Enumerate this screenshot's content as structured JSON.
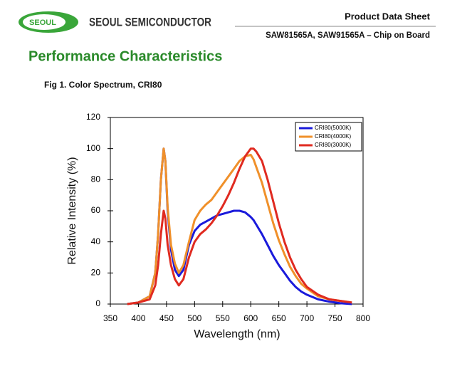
{
  "header": {
    "logo": "SEOUL",
    "company": "SEOUL SEMICONDUCTOR",
    "doc_type": "Product Data Sheet",
    "products": "SAW81565A, SAW91565A – Chip on Board"
  },
  "section_title": "Performance Characteristics",
  "figure_caption": "Fig 1. Color Spectrum, CRI80",
  "chart_data": {
    "type": "line",
    "x_label": "Wavelength (nm)",
    "y_label": "Relative Intensity (%)",
    "x": [
      380,
      400,
      420,
      430,
      435,
      440,
      445,
      448,
      452,
      458,
      465,
      472,
      480,
      490,
      500,
      510,
      520,
      530,
      540,
      550,
      560,
      570,
      580,
      590,
      600,
      605,
      610,
      620,
      630,
      640,
      650,
      660,
      670,
      680,
      690,
      700,
      720,
      740,
      760,
      780
    ],
    "series": [
      {
        "name": "CRI80(5000K)",
        "color": "#1a1adb",
        "values": [
          0,
          1,
          5,
          20,
          45,
          80,
          100,
          92,
          60,
          35,
          22,
          18,
          22,
          38,
          47,
          51,
          53,
          55,
          57,
          58,
          59,
          60,
          60,
          59,
          56,
          54,
          51,
          45,
          38,
          31,
          25,
          20,
          15,
          11,
          8,
          6,
          3,
          1.5,
          0.5,
          0
        ]
      },
      {
        "name": "CRI80(4000K)",
        "color": "#f0902a",
        "values": [
          0,
          1,
          5,
          20,
          45,
          80,
          100,
          92,
          62,
          38,
          26,
          20,
          25,
          40,
          54,
          60,
          64,
          67,
          72,
          77,
          82,
          87,
          92,
          95,
          96,
          93,
          88,
          78,
          65,
          52,
          41,
          32,
          24,
          18,
          13,
          10,
          5,
          3,
          2,
          1
        ]
      },
      {
        "name": "CRI80(3000K)",
        "color": "#e02a20",
        "values": [
          0,
          1,
          3,
          12,
          25,
          45,
          60,
          55,
          38,
          25,
          16,
          12,
          16,
          30,
          40,
          45,
          48,
          52,
          57,
          63,
          70,
          78,
          87,
          95,
          100,
          100,
          98,
          92,
          80,
          66,
          52,
          40,
          30,
          22,
          16,
          11,
          6,
          3,
          2,
          1
        ]
      }
    ],
    "xlim": [
      350,
      800
    ],
    "xticks": [
      350,
      400,
      450,
      500,
      550,
      600,
      650,
      700,
      750,
      800
    ],
    "ylim": [
      0,
      120
    ],
    "yticks": [
      0,
      20,
      40,
      60,
      80,
      100,
      120
    ],
    "legend": "upper right",
    "grid": false
  }
}
